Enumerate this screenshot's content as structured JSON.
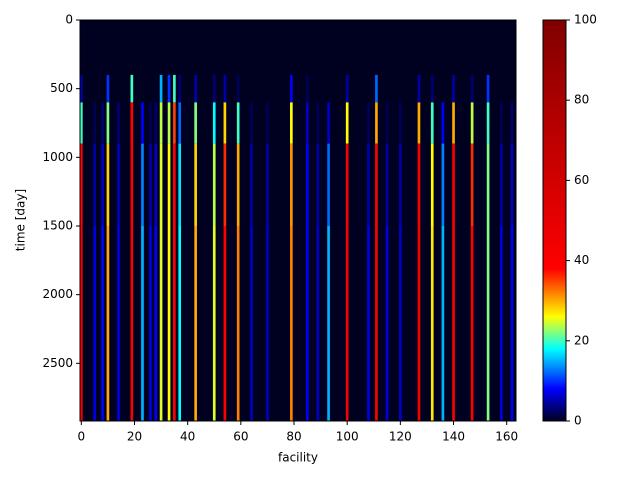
{
  "chart_data": {
    "type": "heatmap",
    "xlabel": "facility",
    "ylabel": "time [day]",
    "x": [
      0,
      5,
      8,
      10,
      14,
      19,
      23,
      26,
      28,
      30,
      33,
      35,
      37,
      43,
      50,
      54,
      59,
      64,
      70,
      79,
      85,
      89,
      93,
      100,
      108,
      111,
      115,
      120,
      127,
      132,
      136,
      140,
      147,
      153,
      158,
      162
    ],
    "ybins": [
      0,
      400,
      600,
      900,
      1500,
      2920
    ],
    "values": [
      [
        0,
        0,
        0,
        0,
        0,
        0,
        0,
        0,
        0,
        0,
        0,
        0,
        0,
        0,
        0,
        0,
        0,
        0,
        0,
        0,
        0,
        0,
        0,
        0,
        0,
        0,
        0,
        0,
        0,
        0,
        0,
        0,
        0,
        0,
        0,
        0
      ],
      [
        5,
        0,
        0,
        10,
        0,
        20,
        0,
        0,
        0,
        15,
        10,
        20,
        3,
        5,
        3,
        5,
        2,
        0,
        0,
        8,
        2,
        0,
        0,
        5,
        0,
        12,
        0,
        0,
        5,
        3,
        0,
        5,
        3,
        10,
        0,
        0
      ],
      [
        20,
        2,
        3,
        22,
        3,
        38,
        8,
        2,
        3,
        24,
        24,
        35,
        12,
        22,
        18,
        28,
        20,
        2,
        2,
        26,
        6,
        2,
        6,
        26,
        2,
        30,
        2,
        2,
        30,
        20,
        8,
        30,
        24,
        20,
        2,
        3
      ],
      [
        40,
        5,
        6,
        28,
        6,
        42,
        13,
        5,
        6,
        25,
        26,
        38,
        17,
        28,
        24,
        36,
        30,
        5,
        5,
        31,
        8,
        5,
        12,
        40,
        5,
        38,
        5,
        5,
        40,
        26,
        13,
        40,
        36,
        22,
        5,
        6
      ],
      [
        45,
        7,
        8,
        30,
        7,
        42,
        15,
        7,
        8,
        25,
        26,
        38,
        18,
        30,
        25,
        38,
        32,
        6,
        6,
        32,
        8,
        6,
        15,
        42,
        7,
        40,
        7,
        6,
        42,
        27,
        15,
        42,
        38,
        22,
        7,
        8
      ]
    ],
    "xlim": [
      -0.5,
      163.5
    ],
    "xticks": [
      0,
      20,
      40,
      60,
      80,
      100,
      120,
      140,
      160
    ],
    "ylim": [
      2920,
      0
    ],
    "yticks": [
      0,
      500,
      1000,
      1500,
      2000,
      2500
    ],
    "clim": [
      0,
      100
    ],
    "cticks": [
      0,
      20,
      40,
      60,
      80,
      100
    ],
    "colormap": [
      {
        "value": 0,
        "color": "#000020"
      },
      {
        "value": 8,
        "color": "#0000ff"
      },
      {
        "value": 18,
        "color": "#00ffff"
      },
      {
        "value": 26,
        "color": "#ffff00"
      },
      {
        "value": 38,
        "color": "#ff0000"
      },
      {
        "value": 100,
        "color": "#800000"
      }
    ]
  }
}
